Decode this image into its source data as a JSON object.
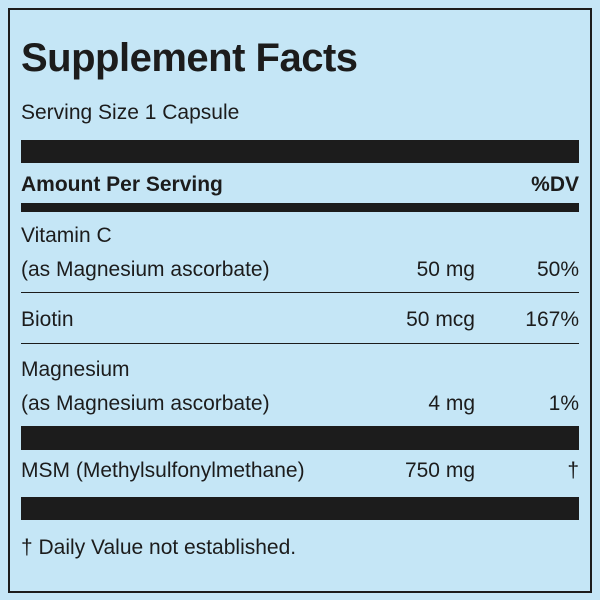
{
  "label": {
    "title": "Supplement Facts",
    "serving_size": "Serving Size 1 Capsule",
    "header_amount": "Amount Per Serving",
    "header_dv": "%DV",
    "nutrients": [
      {
        "name": "Vitamin C",
        "source": "(as Magnesium ascorbate)",
        "amount": "50 mg",
        "dv": "50%"
      },
      {
        "name": "Biotin",
        "amount": "50 mcg",
        "dv": "167%"
      },
      {
        "name": "Magnesium",
        "source": "(as Magnesium ascorbate)",
        "amount": "4 mg",
        "dv": "1%"
      },
      {
        "name": "MSM (Methylsulfonylmethane)",
        "amount": "750 mg",
        "dv": "†"
      }
    ],
    "footnote": "† Daily Value not established."
  },
  "colors": {
    "background": "#c5e6f6",
    "ink": "#1c1c1c"
  }
}
